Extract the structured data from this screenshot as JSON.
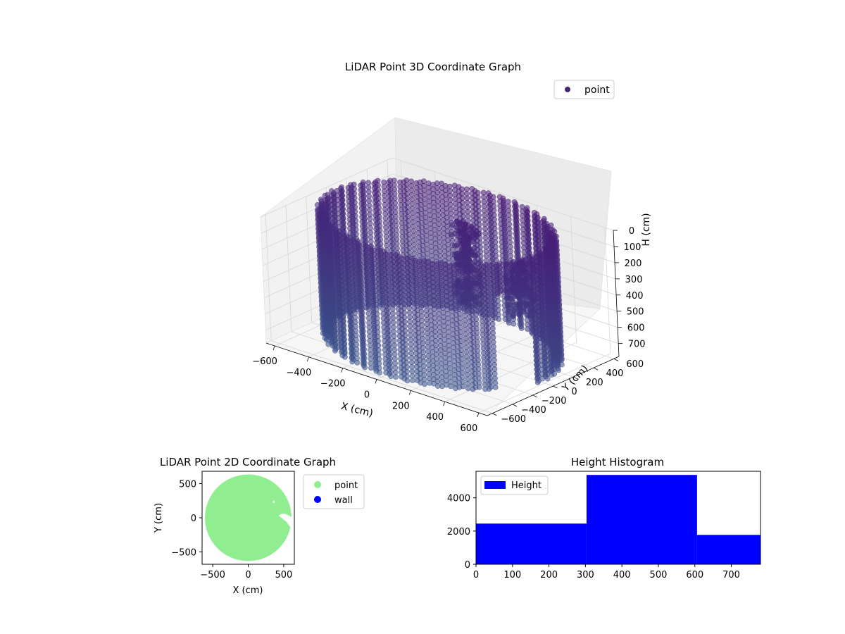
{
  "chart_data": [
    {
      "type": "scatter3d",
      "title": "LiDAR Point 3D Coordinate Graph",
      "xlabel": "X (cm)",
      "ylabel": "Y (cm)",
      "zlabel": "H (cm)",
      "xlim": [
        -650,
        650
      ],
      "ylim": [
        -650,
        650
      ],
      "zlim": [
        780,
        0
      ],
      "xticks": [
        "−600",
        "−400",
        "−200",
        "0",
        "200",
        "400",
        "600"
      ],
      "yticks": [
        "−600",
        "−400",
        "−200",
        "0",
        "200",
        "400",
        "600"
      ],
      "zticks": [
        "0",
        "100",
        "200",
        "300",
        "400",
        "500",
        "600",
        "700"
      ],
      "legend": "top-right",
      "series": [
        {
          "name": "point",
          "color": "#482878",
          "shape": "cylindrical wall",
          "radius": 600,
          "height_range": [
            0,
            760
          ]
        }
      ]
    },
    {
      "type": "scatter",
      "title": "LiDAR Point 2D Coordinate Graph",
      "xlabel": "X (cm)",
      "ylabel": "Y (cm)",
      "xlim": [
        -650,
        650
      ],
      "ylim": [
        -680,
        680
      ],
      "xticks": [
        "−500",
        "0",
        "500"
      ],
      "yticks": [
        "−500",
        "0",
        "500"
      ],
      "legend": "right",
      "series": [
        {
          "name": "point",
          "color": "#90ee90"
        },
        {
          "name": "wall",
          "color": "#0000ff"
        }
      ]
    },
    {
      "type": "bar",
      "title": "Height Histogram",
      "xlim": [
        0,
        780
      ],
      "ylim": [
        0,
        5600
      ],
      "xticks": [
        "0",
        "100",
        "200",
        "300",
        "400",
        "500",
        "600",
        "700"
      ],
      "yticks": [
        "0",
        "2000",
        "4000"
      ],
      "legend": "top-left",
      "series": [
        {
          "name": "Height",
          "color": "#0000ff",
          "bins": [
            {
              "from": 0,
              "to": 303,
              "count": 2450
            },
            {
              "from": 303,
              "to": 606,
              "count": 5380
            },
            {
              "from": 606,
              "to": 780,
              "count": 1770
            }
          ]
        }
      ]
    }
  ]
}
